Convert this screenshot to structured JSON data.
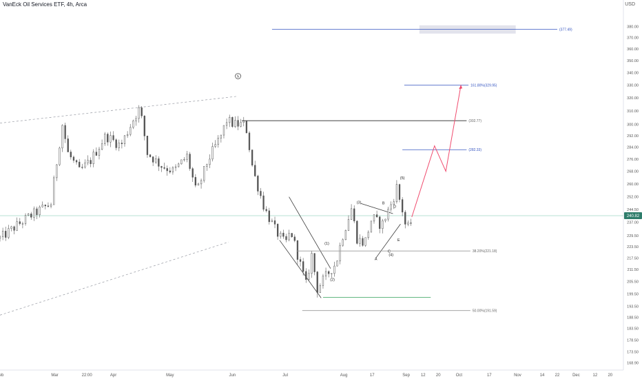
{
  "header": {
    "title": "VanEck Oil Services ETF, 4h, Arca"
  },
  "currency": "USD",
  "chart_data": {
    "type": "candlestick",
    "title": "VanEck Oil Services ETF, 4h, Arca",
    "currency": "USD",
    "price_scale": "log",
    "ylim": [
      166,
      405
    ],
    "xlim": [
      "Feb",
      "Dec 27"
    ],
    "last_price": "240.82",
    "y_ticks": [
      "380.00",
      "370.00",
      "360.00",
      "350.00",
      "340.00",
      "330.00",
      "320.00",
      "310.00",
      "300.00",
      "292.00",
      "284.00",
      "276.00",
      "268.00",
      "260.00",
      "252.00",
      "244.50",
      "237.00",
      "229.50",
      "223.50",
      "217.50",
      "211.50",
      "205.50",
      "199.50",
      "193.50",
      "188.50",
      "183.50",
      "178.50",
      "173.50",
      "168.90"
    ],
    "x_ticks": [
      {
        "label": "Feb",
        "date": "2024-02-01"
      },
      {
        "label": "Mar",
        "date": "2024-03-01"
      },
      {
        "label": "22:00",
        "date": "2024-03-18"
      },
      {
        "label": "Apr",
        "date": "2024-04-01"
      },
      {
        "label": "May",
        "date": "2024-05-01"
      },
      {
        "label": "Jun",
        "date": "2024-06-03"
      },
      {
        "label": "Jul",
        "date": "2024-07-01"
      },
      {
        "label": "Aug",
        "date": "2024-08-01"
      },
      {
        "label": "17",
        "date": "2024-08-16"
      },
      {
        "label": "Sep",
        "date": "2024-09-03"
      },
      {
        "label": "12",
        "date": "2024-09-12"
      },
      {
        "label": "20",
        "date": "2024-09-20"
      },
      {
        "label": "Oct",
        "date": "2024-10-01"
      },
      {
        "label": "17",
        "date": "2024-10-17"
      },
      {
        "label": "Nov",
        "date": "2024-11-01"
      },
      {
        "label": "14",
        "date": "2024-11-14"
      },
      {
        "label": "22",
        "date": "2024-11-22"
      },
      {
        "label": "Dec",
        "date": "2024-12-02"
      },
      {
        "label": "12",
        "date": "2024-12-12"
      },
      {
        "label": "20",
        "date": "2024-12-20"
      }
    ],
    "price_path": [
      [
        "2024-02-01",
        228
      ],
      [
        "2024-02-16",
        240
      ],
      [
        "2024-02-28",
        248
      ],
      [
        "2024-03-05",
        300
      ],
      [
        "2024-03-08",
        280
      ],
      [
        "2024-03-14",
        268
      ],
      [
        "2024-03-20",
        275
      ],
      [
        "2024-03-28",
        292
      ],
      [
        "2024-04-05",
        285
      ],
      [
        "2024-04-12",
        305
      ],
      [
        "2024-04-15",
        312
      ],
      [
        "2024-04-19",
        280
      ],
      [
        "2024-04-26",
        272
      ],
      [
        "2024-05-03",
        268
      ],
      [
        "2024-05-10",
        278
      ],
      [
        "2024-05-15",
        254
      ],
      [
        "2024-05-21",
        275
      ],
      [
        "2024-05-28",
        292
      ],
      [
        "2024-05-31",
        303
      ],
      [
        "2024-06-04",
        300
      ],
      [
        "2024-06-10",
        300
      ],
      [
        "2024-06-14",
        268
      ],
      [
        "2024-06-20",
        245
      ],
      [
        "2024-06-26",
        232
      ],
      [
        "2024-07-01",
        225
      ],
      [
        "2024-07-04",
        232
      ],
      [
        "2024-07-09",
        214
      ],
      [
        "2024-07-12",
        204
      ],
      [
        "2024-07-15",
        219
      ],
      [
        "2024-07-18",
        202
      ],
      [
        "2024-07-24",
        210
      ],
      [
        "2024-07-28",
        215
      ],
      [
        "2024-07-31",
        228
      ],
      [
        "2024-08-05",
        245
      ],
      [
        "2024-08-08",
        228
      ],
      [
        "2024-08-12",
        225
      ],
      [
        "2024-08-16",
        240
      ],
      [
        "2024-08-21",
        235
      ],
      [
        "2024-08-27",
        250
      ],
      [
        "2024-08-29",
        258
      ],
      [
        "2024-08-31",
        248
      ],
      [
        "2024-09-02",
        240
      ],
      [
        "2024-09-03",
        232
      ],
      [
        "2024-09-06",
        238
      ]
    ],
    "projection": {
      "color": "#f04a6d",
      "points": [
        [
          "2024-09-06",
          240
        ],
        [
          "2024-09-18",
          285
        ],
        [
          "2024-09-24",
          268
        ],
        [
          "2024-10-02",
          330
        ]
      ]
    },
    "annotations": [
      {
        "label": "5",
        "date": "2024-06-06",
        "price": 336,
        "circled": true
      },
      {
        "label": "(1)",
        "date": "2024-07-23",
        "price": 224.5
      },
      {
        "label": "(2)",
        "date": "2024-07-26",
        "price": 205.8
      },
      {
        "label": "(3)",
        "date": "2024-08-09",
        "price": 248
      },
      {
        "label": "(4)",
        "date": "2024-08-26",
        "price": 218.5
      },
      {
        "label": "(5)",
        "date": "2024-09-01",
        "price": 263
      },
      {
        "label": "A",
        "date": "2024-08-18",
        "price": 216.3
      },
      {
        "label": "B",
        "date": "2024-08-22",
        "price": 247.5
      },
      {
        "label": "C",
        "date": "2024-08-25",
        "price": 220.3
      },
      {
        "label": "D",
        "date": "2024-08-28",
        "price": 245.4
      },
      {
        "label": "E",
        "date": "2024-08-30",
        "price": 226.4
      }
    ],
    "levels": [
      {
        "label": "(377.49)",
        "price": 377.49,
        "start": "2024-06-24",
        "end": "2024-11-22",
        "color": "#3454c0"
      },
      {
        "label": "161.80%(329.95)",
        "price": 329.95,
        "start": "2024-09-02",
        "end": "2024-10-06",
        "color": "#3454c0"
      },
      {
        "label": "(302.77)",
        "price": 302.77,
        "start": "2024-06-08",
        "end": "2024-10-05",
        "color": "#555555"
      },
      {
        "label": "(282.33)",
        "price": 282.33,
        "start": "2024-09-01",
        "end": "2024-10-05",
        "color": "#3454c0"
      },
      {
        "label": "38.20%(221.18)",
        "price": 221.18,
        "start": "2024-07-07",
        "end": "2024-10-07",
        "color": "#999999"
      },
      {
        "label": "",
        "price": 197.8,
        "start": "2024-07-21",
        "end": "2024-09-16",
        "color": "#2e9e57"
      },
      {
        "label": "50.00%(191.59)",
        "price": 191.59,
        "start": "2024-07-10",
        "end": "2024-10-07",
        "color": "#999999"
      }
    ],
    "zones": [
      {
        "price_low": 373.5,
        "price_high": 381,
        "start": "2024-09-10",
        "end": "2024-10-31",
        "color": "#dfe0ea"
      }
    ],
    "current_price_line": {
      "price": 240.82,
      "color": "#9fd9c4"
    },
    "trend_lines": [
      {
        "from": [
          "2024-02-01",
          301
        ],
        "to": [
          "2024-06-05",
          321
        ],
        "style": "dashed"
      },
      {
        "from": [
          "2024-02-01",
          189.5
        ],
        "to": [
          "2024-06-01",
          226
        ],
        "style": "dashed"
      },
      {
        "from": [
          "2024-07-03",
          252
        ],
        "to": [
          "2024-07-25",
          212
        ]
      },
      {
        "from": [
          "2024-06-28",
          227
        ],
        "to": [
          "2024-07-20",
          197.5
        ]
      },
      {
        "from": [
          "2024-08-10",
          248
        ],
        "to": [
          "2024-08-27",
          242
        ]
      },
      {
        "from": [
          "2024-08-18",
          217.5
        ],
        "to": [
          "2024-08-31",
          236
        ]
      }
    ]
  }
}
